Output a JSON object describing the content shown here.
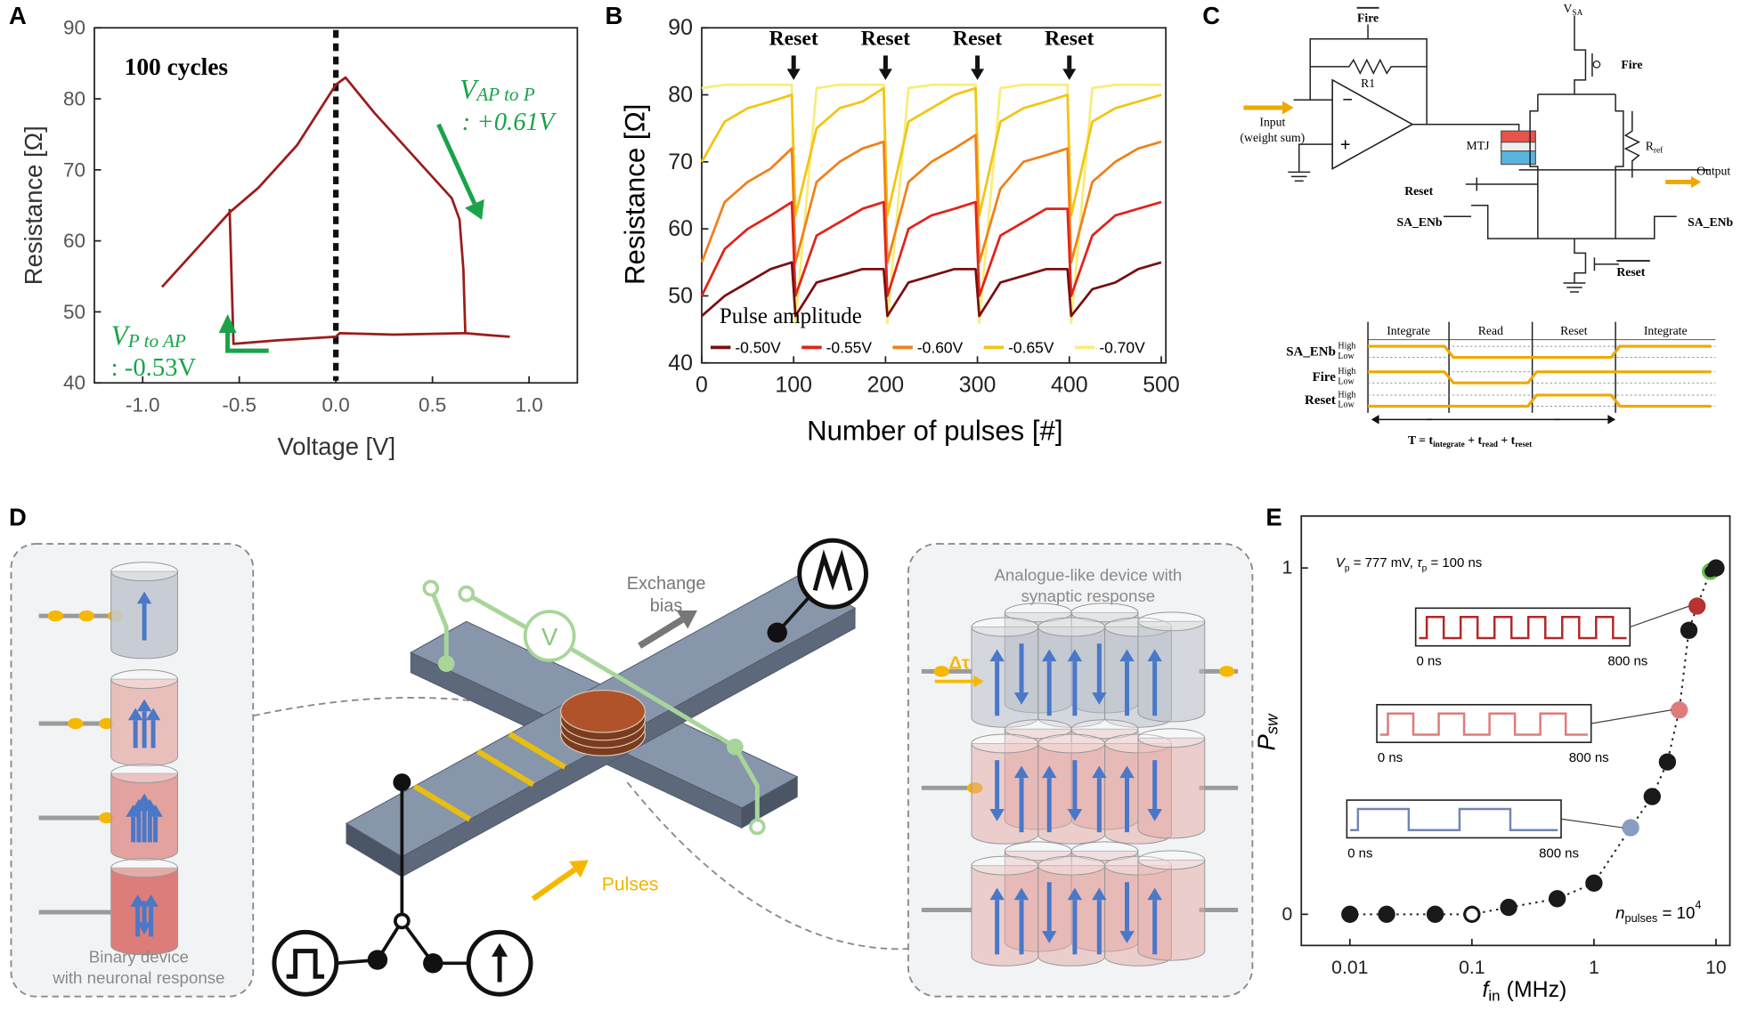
{
  "panel_labels": [
    "A",
    "B",
    "C",
    "D",
    "E"
  ],
  "chart_data": [
    {
      "type": "line",
      "x_label": "Voltage [V]",
      "y_label": "Resistance [Ω]",
      "annotations": {
        "cycles": "100 cycles",
        "ap_to_p": {
          "symbol": "V",
          "subscript": "AP to P",
          "value": ": +0.61V"
        },
        "p_to_ap": {
          "symbol": "V",
          "subscript": "P to AP",
          "value": ": -0.53V"
        }
      },
      "series": [
        {
          "color": "#9b1c1c",
          "x": [
            -0.9,
            -0.8,
            -0.7,
            -0.6,
            -0.55,
            -0.4,
            -0.2,
            0.0,
            0.05,
            0.2,
            0.4,
            0.6,
            0.64,
            0.66,
            0.67,
            0.8,
            0.9
          ],
          "values": [
            53.5,
            56.5,
            59.5,
            62.5,
            64,
            67.5,
            73.5,
            82,
            83,
            78,
            72,
            66,
            63,
            56,
            47,
            46.7,
            46.5
          ]
        },
        {
          "color": "#9b1c1c",
          "x": [
            0.67,
            0.3,
            0.02,
            0.0,
            -0.3,
            -0.53,
            -0.54,
            -0.55
          ],
          "values": [
            47,
            46.8,
            47,
            46.5,
            46,
            45.5,
            55,
            64.5
          ]
        }
      ],
      "xlim": [
        -1.25,
        1.25
      ],
      "xticks": [
        {
          "value": -1,
          "label": "-1.0"
        },
        -0.5,
        {
          "value": 0,
          "label": "0.0"
        },
        0.5,
        {
          "value": 1,
          "label": "1.0"
        }
      ],
      "ylim": [
        40,
        90
      ],
      "yticks": [
        40,
        50,
        60,
        70,
        80,
        90
      ]
    },
    {
      "type": "line",
      "x_label": "Number of pulses [#]",
      "y_label": "Resistance [Ω]",
      "legend_title": "Pulse amplitude",
      "legend": "lower left",
      "annotations": [
        "Reset",
        "Reset",
        "Reset",
        "Reset"
      ],
      "x": [
        0,
        25,
        50,
        75,
        98,
        102,
        125,
        150,
        175,
        198,
        202,
        225,
        250,
        275,
        298,
        302,
        325,
        350,
        375,
        398,
        402,
        425,
        450,
        475,
        500
      ],
      "series": [
        {
          "name": "-0.50V",
          "color": "#7a0f0f",
          "values": [
            47,
            50,
            52,
            54,
            55,
            47,
            52,
            53,
            54,
            54,
            47,
            52,
            53,
            54,
            54,
            47,
            52,
            53,
            54,
            54,
            47,
            51,
            52,
            54,
            55
          ]
        },
        {
          "name": "-0.55V",
          "color": "#e2231a",
          "values": [
            50,
            57,
            60,
            62,
            64,
            50,
            59,
            61,
            63,
            64,
            50,
            60,
            62,
            63,
            64,
            50,
            59,
            61,
            63,
            63,
            50,
            59,
            62,
            63,
            64
          ]
        },
        {
          "name": "-0.60V",
          "color": "#f0801a",
          "values": [
            55,
            64,
            67,
            69,
            72,
            55,
            67,
            70,
            72,
            73,
            55,
            67,
            70,
            72,
            74,
            55,
            66,
            70,
            71,
            72,
            55,
            67,
            70,
            72,
            73
          ]
        },
        {
          "name": "-0.65V",
          "color": "#f2c514",
          "values": [
            70,
            76,
            78,
            79,
            80,
            62,
            75,
            78,
            79,
            81,
            62,
            76,
            78,
            80,
            81,
            62,
            76,
            78,
            79,
            80,
            62,
            76,
            78,
            79,
            80
          ]
        },
        {
          "name": "-0.70V",
          "color": "#f6ee7a",
          "values": [
            81,
            81.5,
            81.5,
            81.5,
            81.5,
            46,
            81,
            81.5,
            81.5,
            81.5,
            46,
            81,
            81.5,
            81.5,
            81.5,
            46,
            81,
            81.5,
            81.5,
            81.5,
            46,
            81,
            81.5,
            81.5,
            81.5
          ]
        }
      ],
      "xlim": [
        0,
        505
      ],
      "xticks": [
        0,
        100,
        200,
        300,
        400,
        500
      ],
      "ylim": [
        40,
        90
      ],
      "yticks": [
        40,
        50,
        60,
        70,
        80,
        90
      ]
    },
    {
      "type": "scatter",
      "x_label": {
        "symbol": "f",
        "subscript": "in",
        "unit": " (MHz)"
      },
      "y_label": {
        "symbol": "P",
        "subscript": "sw"
      },
      "annotations": {
        "top": {
          "v": "V",
          "v_sub": "p",
          "v_val": " = 777 mV, ",
          "tau": "τ",
          "tau_sub": "p",
          "tau_val": " = 100 ns"
        },
        "bottom": {
          "n": "n",
          "n_sub": "pulses",
          "eq": " = 10",
          "sup": "4"
        }
      },
      "insets": [
        {
          "start": "0 ns",
          "end": "800 ns",
          "color": "#b02a2a"
        },
        {
          "start": "0 ns",
          "end": "800 ns",
          "color": "#de7b7b"
        },
        {
          "start": "0 ns",
          "end": "800 ns",
          "color": "#7186b3"
        }
      ],
      "x": [
        0.01,
        0.02,
        0.05,
        0.1,
        0.2,
        0.5,
        1,
        2,
        3,
        4,
        5,
        6,
        7,
        9,
        10
      ],
      "values": [
        0,
        0,
        0,
        0,
        0.02,
        0.045,
        0.09,
        0.25,
        0.34,
        0.44,
        0.59,
        0.82,
        0.89,
        0.99,
        1.0
      ],
      "colors": [
        "#1a1a1a",
        "#1a1a1a",
        "#1a1a1a",
        "#ffffff",
        "#1a1a1a",
        "#1a1a1a",
        "#1a1a1a",
        "#8a9cc4",
        "#1a1a1a",
        "#1a1a1a",
        "#df7b7b",
        "#1a1a1a",
        "#b83232",
        "#1a1a1a",
        "#1a1a1a"
      ],
      "edge_colors": [
        "#1a1a1a",
        "#1a1a1a",
        "#1a1a1a",
        "#1a1a1a",
        "#1a1a1a",
        "#1a1a1a",
        "#1a1a1a",
        "#8a9cc4",
        "#1a1a1a",
        "#1a1a1a",
        "#df7b7b",
        "#1a1a1a",
        "#b83232",
        "#6cc04a",
        "#1a1a1a"
      ],
      "xscale": "log",
      "xlim": [
        0.004,
        13
      ],
      "xticks": [
        0.01,
        0.1,
        1,
        10
      ],
      "ylim": [
        -0.09,
        1.15
      ],
      "yticks": [
        0,
        1
      ]
    }
  ],
  "circuit": {
    "fire_bar": "Fire",
    "r1": "R1",
    "v_sa": {
      "symbol": "V",
      "subscript": "SA"
    },
    "fire": "Fire",
    "input": [
      "Input",
      "(weight sum)"
    ],
    "mtj": "MTJ",
    "r_ref": {
      "symbol": "R",
      "subscript": "ref"
    },
    "output": "Output",
    "reset": "Reset",
    "sa_enb_left": "SA_ENb",
    "sa_enb_right": "SA_ENb",
    "reset_bar": "Reset"
  },
  "timing": {
    "phases": [
      "Integrate",
      "Read",
      "Reset",
      "Integrate"
    ],
    "signals": [
      "SA_ENb",
      "Fire",
      "Reset"
    ],
    "high": "High",
    "low": "Low",
    "period": {
      "lead": "T = ",
      "joiner": " + ",
      "terms": [
        {
          "symbol": "t",
          "subscript": "integrate"
        },
        {
          "symbol": "t",
          "subscript": "read"
        },
        {
          "symbol": "t",
          "subscript": "reset"
        }
      ]
    }
  },
  "schematic": {
    "exchange_bias": [
      "Exchange",
      "bias"
    ],
    "pulses": "Pulses",
    "voltmeter": "V",
    "delta_tau": "Δτ",
    "binary_device": [
      "Binary device",
      "with neuronal response"
    ],
    "analogue_device": [
      "Analogue-like device with",
      "synaptic response"
    ]
  }
}
